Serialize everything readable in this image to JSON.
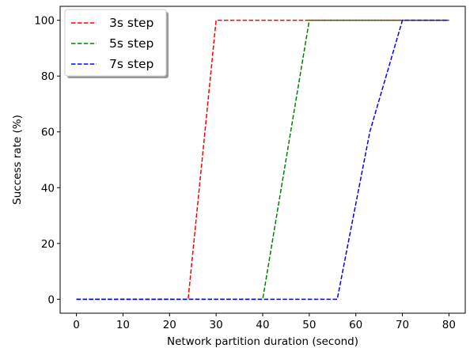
{
  "chart_data": {
    "type": "line",
    "title": "",
    "xlabel": "Network partition duration (second)",
    "ylabel": "Success rate (%)",
    "xlim": [
      -3.5,
      83.5
    ],
    "ylim": [
      -5,
      105
    ],
    "xticks": [
      0,
      10,
      20,
      30,
      40,
      50,
      60,
      70,
      80
    ],
    "yticks": [
      0,
      20,
      40,
      60,
      80,
      100
    ],
    "grid": false,
    "legend_position": "top-left",
    "line_style": "dashed",
    "series": [
      {
        "name": "3s step",
        "color": "#ff0000",
        "x": [
          0,
          24,
          30,
          80
        ],
        "y": [
          0,
          0,
          100,
          100
        ]
      },
      {
        "name": "5s step",
        "color": "#008000",
        "x": [
          0,
          40,
          50,
          80
        ],
        "y": [
          0,
          0,
          100,
          100
        ]
      },
      {
        "name": "7s step",
        "color": "#0000ff",
        "x": [
          0,
          56,
          63,
          70,
          80
        ],
        "y": [
          0,
          0,
          60,
          100,
          100
        ]
      }
    ]
  }
}
